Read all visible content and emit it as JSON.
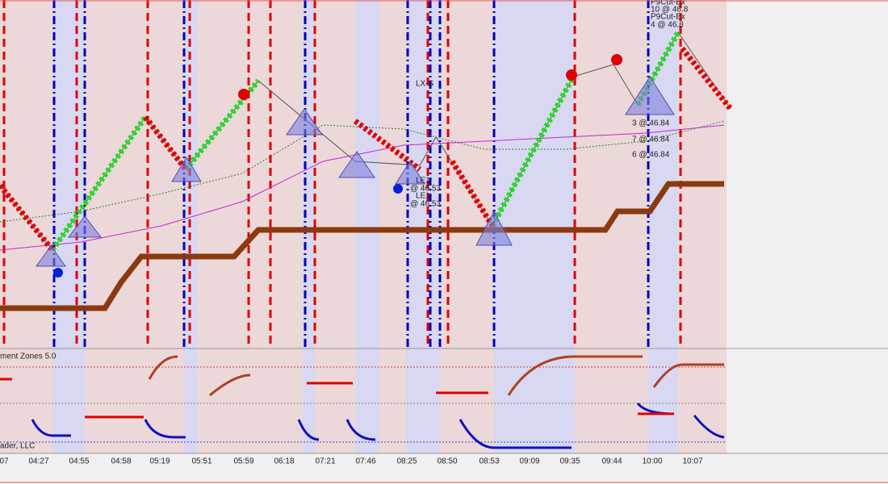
{
  "panel": {
    "indicator_title": "ment Zones 5.0",
    "footer": "ader, LLC"
  },
  "time_axis": {
    "labels": [
      "07",
      "04:27",
      "04:55",
      "04:58",
      "05:19",
      "05:51",
      "05:59",
      "06:18",
      "07:21",
      "07:46",
      "08:25",
      "08:50",
      "08:53",
      "09:09",
      "09:35",
      "09:44",
      "10:00",
      "10:07"
    ]
  },
  "orders": {
    "lx": "LX-S",
    "le1": "LE1",
    "le1_price": "@ 46.53",
    "le1_b": "LE1",
    "le1_b_price": "@ 46.53",
    "cut1": "P9Cut-Ex",
    "cut1_qty": "10 @ 46.8",
    "cut2": "P9Cut-Ex",
    "cut2_qty": "4 @ 46.8",
    "fill1": "3 @ 46.84",
    "fill2": "7 @ 46.84",
    "fill3": "6 @ 46.84"
  }
}
